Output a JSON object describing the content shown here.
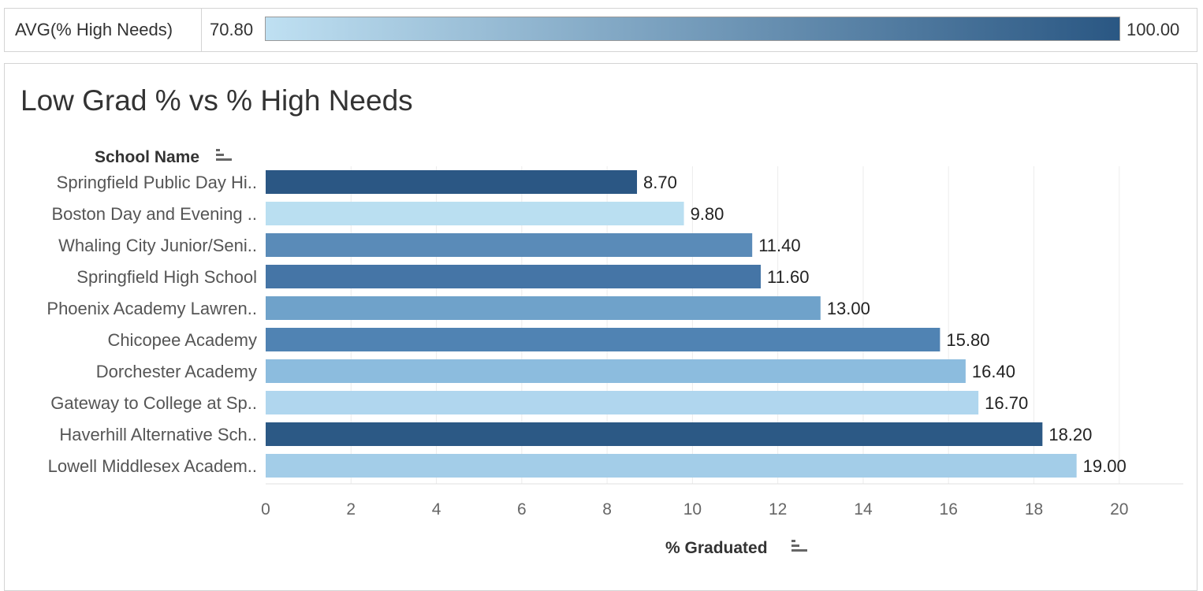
{
  "legend": {
    "label": "AVG(% High Needs)",
    "min_label": "70.80",
    "max_label": "100.00",
    "min": 70.8,
    "max": 100,
    "color_low": "#bfe0f2",
    "color_high": "#2a5783"
  },
  "chart_data": {
    "type": "bar",
    "orientation": "horizontal",
    "title": "Low Grad % vs % High Needs",
    "ylabel": "School Name",
    "xlabel": "% Graduated",
    "xlim": [
      0,
      21.5
    ],
    "xticks": [
      0,
      2,
      4,
      6,
      8,
      10,
      12,
      14,
      16,
      18,
      20
    ],
    "grid": true,
    "categories": [
      "Springfield Public Day Hi..",
      "Boston Day and Evening ..",
      "Whaling City Junior/Seni..",
      "Springfield High School",
      "Phoenix Academy Lawren..",
      "Chicopee Academy",
      "Dorchester Academy",
      "Gateway to College at Sp..",
      "Haverhill Alternative Sch..",
      "Lowell Middlesex Academ.."
    ],
    "values": [
      8.7,
      9.8,
      11.4,
      11.6,
      13.0,
      15.8,
      16.4,
      16.7,
      18.2,
      19.0
    ],
    "value_labels": [
      "8.70",
      "9.80",
      "11.40",
      "11.60",
      "13.00",
      "15.80",
      "16.40",
      "16.70",
      "18.20",
      "19.00"
    ],
    "colors": [
      "#2b5784",
      "#badff1",
      "#5a8bb8",
      "#4575a6",
      "#6fa2ca",
      "#5083b3",
      "#8cbcde",
      "#b0d6ee",
      "#2c5985",
      "#a3cde8"
    ]
  }
}
